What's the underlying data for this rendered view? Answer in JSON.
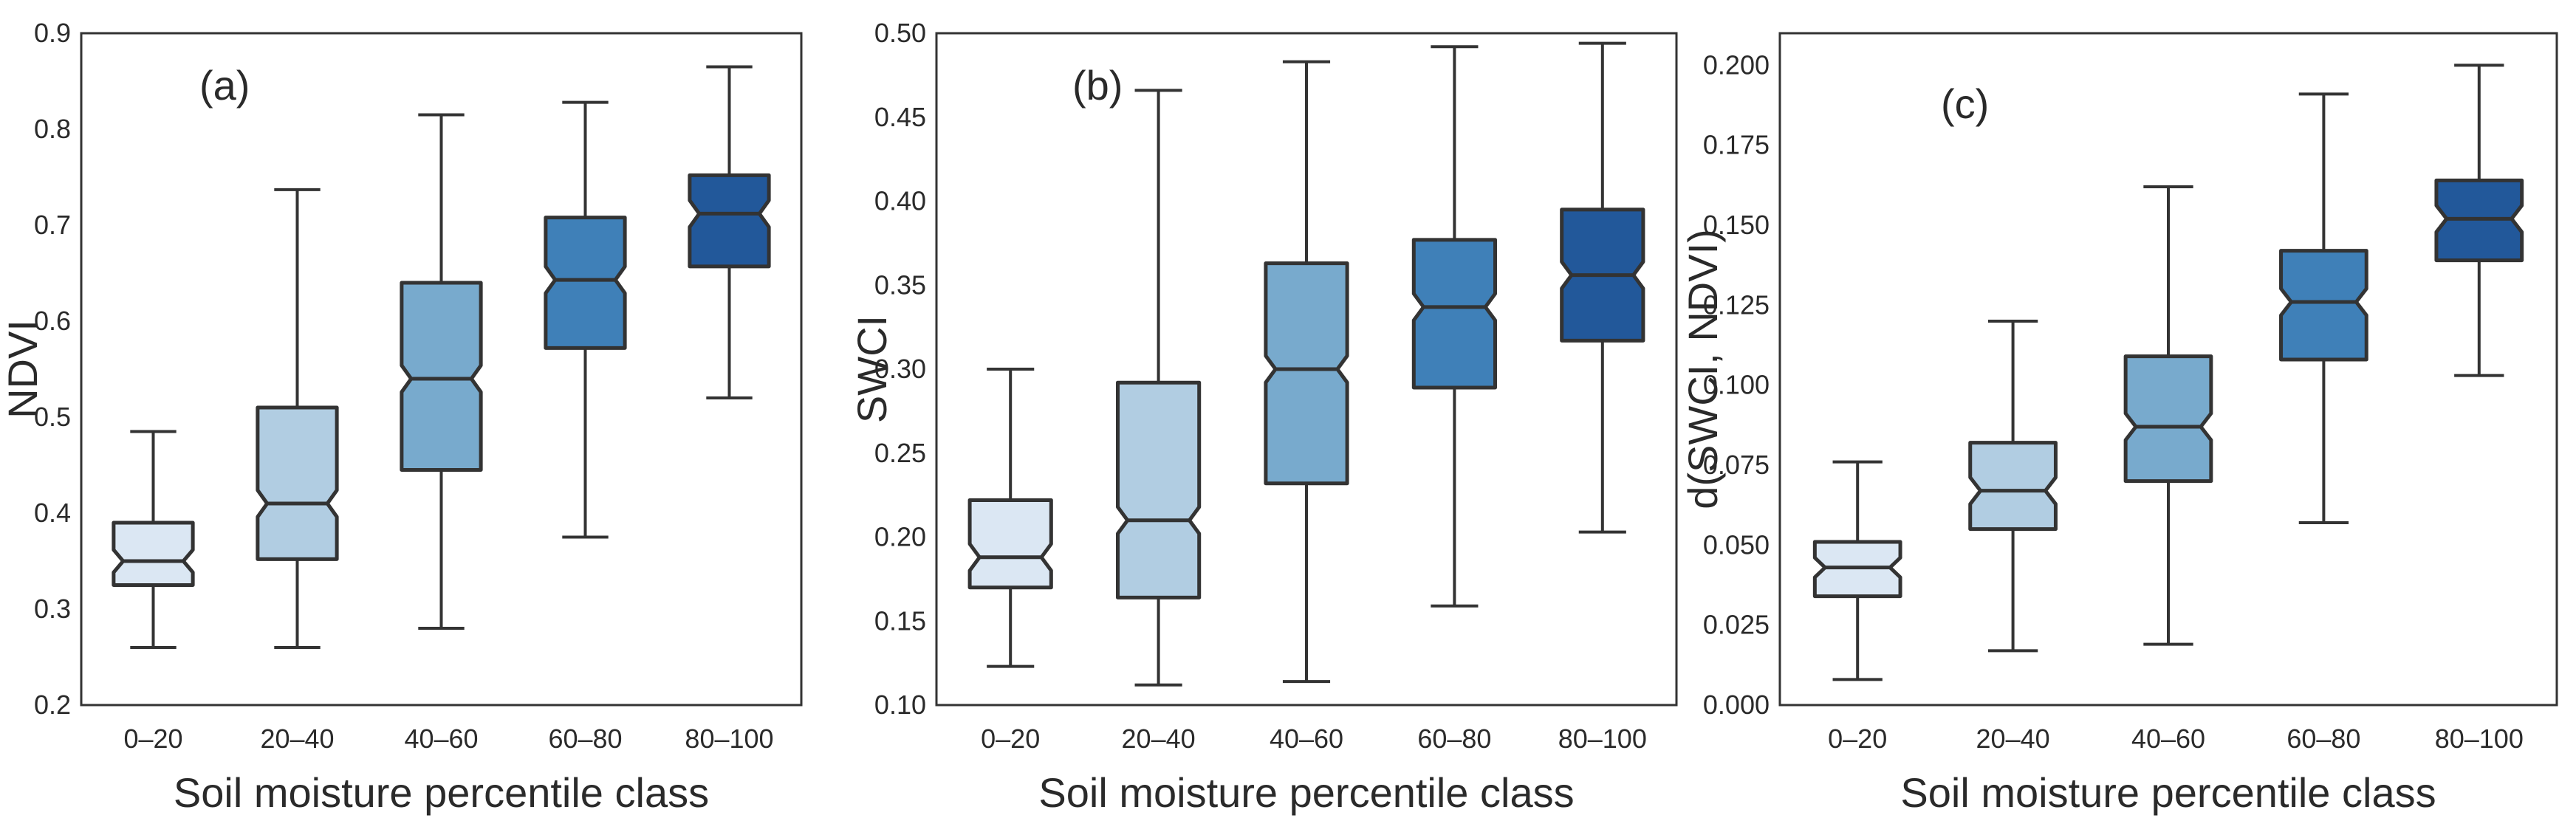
{
  "chart_data": [
    {
      "type": "boxplot",
      "panel_label": "(a)",
      "xlabel": "Soil moisture percentile class",
      "ylabel": "NDVI",
      "categories": [
        "0–20",
        "20–40",
        "40–60",
        "60–80",
        "80–100"
      ],
      "ylim": [
        0.2,
        0.9
      ],
      "yticks": [
        "0.2",
        "0.3",
        "0.4",
        "0.5",
        "0.6",
        "0.7",
        "0.8",
        "0.9"
      ],
      "boxes": [
        {
          "whislo": 0.26,
          "q1": 0.325,
          "med": 0.35,
          "q3": 0.39,
          "whishi": 0.485,
          "color": "#dbe7f3"
        },
        {
          "whislo": 0.26,
          "q1": 0.352,
          "med": 0.41,
          "q3": 0.51,
          "whishi": 0.737,
          "color": "#b1cde2"
        },
        {
          "whislo": 0.28,
          "q1": 0.445,
          "med": 0.54,
          "q3": 0.64,
          "whishi": 0.815,
          "color": "#78aacd"
        },
        {
          "whislo": 0.375,
          "q1": 0.572,
          "med": 0.643,
          "q3": 0.708,
          "whishi": 0.828,
          "color": "#3f80b8"
        },
        {
          "whislo": 0.52,
          "q1": 0.657,
          "med": 0.712,
          "q3": 0.752,
          "whishi": 0.865,
          "color": "#22589a"
        }
      ]
    },
    {
      "type": "boxplot",
      "panel_label": "(b)",
      "xlabel": "Soil moisture percentile class",
      "ylabel": "SWCI",
      "categories": [
        "0–20",
        "20–40",
        "40–60",
        "60–80",
        "80–100"
      ],
      "ylim": [
        0.1,
        0.5
      ],
      "yticks": [
        "0.10",
        "0.15",
        "0.20",
        "0.25",
        "0.30",
        "0.35",
        "0.40",
        "0.45",
        "0.50"
      ],
      "boxes": [
        {
          "whislo": 0.123,
          "q1": 0.17,
          "med": 0.188,
          "q3": 0.222,
          "whishi": 0.3,
          "color": "#dbe7f3"
        },
        {
          "whislo": 0.112,
          "q1": 0.164,
          "med": 0.21,
          "q3": 0.292,
          "whishi": 0.466,
          "color": "#b1cde2"
        },
        {
          "whislo": 0.114,
          "q1": 0.232,
          "med": 0.3,
          "q3": 0.363,
          "whishi": 0.483,
          "color": "#78aacd"
        },
        {
          "whislo": 0.159,
          "q1": 0.289,
          "med": 0.337,
          "q3": 0.377,
          "whishi": 0.492,
          "color": "#3f80b8"
        },
        {
          "whislo": 0.203,
          "q1": 0.317,
          "med": 0.356,
          "q3": 0.395,
          "whishi": 0.494,
          "color": "#22589a"
        }
      ]
    },
    {
      "type": "boxplot",
      "panel_label": "(c)",
      "xlabel": "Soil moisture percentile class",
      "ylabel": "d(SWCI, NDVI)",
      "categories": [
        "0–20",
        "20–40",
        "40–60",
        "60–80",
        "80–100"
      ],
      "ylim": [
        0.0,
        0.21
      ],
      "yticks": [
        "0.000",
        "0.025",
        "0.050",
        "0.075",
        "0.100",
        "0.125",
        "0.150",
        "0.175",
        "0.200"
      ],
      "boxes": [
        {
          "whislo": 0.008,
          "q1": 0.034,
          "med": 0.043,
          "q3": 0.051,
          "whishi": 0.076,
          "color": "#dbe7f3"
        },
        {
          "whislo": 0.017,
          "q1": 0.055,
          "med": 0.067,
          "q3": 0.082,
          "whishi": 0.12,
          "color": "#b1cde2"
        },
        {
          "whislo": 0.019,
          "q1": 0.07,
          "med": 0.087,
          "q3": 0.109,
          "whishi": 0.162,
          "color": "#78aacd"
        },
        {
          "whislo": 0.057,
          "q1": 0.108,
          "med": 0.126,
          "q3": 0.142,
          "whishi": 0.191,
          "color": "#3f80b8"
        },
        {
          "whislo": 0.103,
          "q1": 0.139,
          "med": 0.152,
          "q3": 0.164,
          "whishi": 0.2,
          "color": "#22589a"
        }
      ]
    }
  ]
}
